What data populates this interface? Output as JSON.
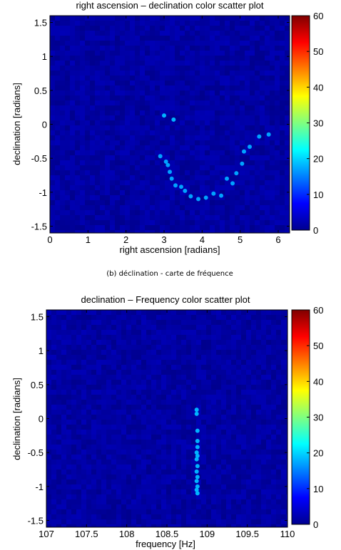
{
  "caption": "(b) déclination - carte de fréquence",
  "colorbar": {
    "min": 0,
    "max": 60,
    "ticks": [
      "0",
      "10",
      "20",
      "30",
      "40",
      "50",
      "60"
    ]
  },
  "chart_data": [
    {
      "type": "scatter",
      "title": "right ascension – declination color scatter plot",
      "xlabel": "right ascension [radians]",
      "ylabel": "declination [radians]",
      "xlim": [
        0,
        6.3
      ],
      "ylim": [
        -1.6,
        1.6
      ],
      "xticks": [
        "0",
        "1",
        "2",
        "3",
        "4",
        "5",
        "6"
      ],
      "yticks": [
        "1.5",
        "1",
        "0.5",
        "0",
        "-0.5",
        "-1",
        "-1.5"
      ],
      "background_value": 2,
      "points": [
        {
          "x": 3.0,
          "y": 0.13,
          "v": 18
        },
        {
          "x": 3.25,
          "y": 0.07,
          "v": 18
        },
        {
          "x": 2.9,
          "y": -0.47,
          "v": 17
        },
        {
          "x": 3.05,
          "y": -0.55,
          "v": 17
        },
        {
          "x": 3.1,
          "y": -0.6,
          "v": 17
        },
        {
          "x": 3.15,
          "y": -0.7,
          "v": 17
        },
        {
          "x": 3.2,
          "y": -0.8,
          "v": 17
        },
        {
          "x": 3.3,
          "y": -0.9,
          "v": 17
        },
        {
          "x": 3.45,
          "y": -0.92,
          "v": 17
        },
        {
          "x": 3.55,
          "y": -0.98,
          "v": 17
        },
        {
          "x": 3.7,
          "y": -1.06,
          "v": 17
        },
        {
          "x": 3.9,
          "y": -1.1,
          "v": 17
        },
        {
          "x": 4.1,
          "y": -1.08,
          "v": 17
        },
        {
          "x": 4.3,
          "y": -1.02,
          "v": 17
        },
        {
          "x": 4.5,
          "y": -1.05,
          "v": 17
        },
        {
          "x": 4.65,
          "y": -0.8,
          "v": 17
        },
        {
          "x": 4.8,
          "y": -0.87,
          "v": 17
        },
        {
          "x": 4.9,
          "y": -0.72,
          "v": 17
        },
        {
          "x": 5.05,
          "y": -0.58,
          "v": 17
        },
        {
          "x": 5.1,
          "y": -0.4,
          "v": 17
        },
        {
          "x": 5.25,
          "y": -0.33,
          "v": 17
        },
        {
          "x": 5.5,
          "y": -0.18,
          "v": 17
        },
        {
          "x": 5.75,
          "y": -0.15,
          "v": 17
        }
      ]
    },
    {
      "type": "scatter",
      "title": "declination – Frequency color scatter plot",
      "xlabel": "frequency [Hz]",
      "ylabel": "declination [radians]",
      "xlim": [
        107,
        110
      ],
      "ylim": [
        -1.6,
        1.6
      ],
      "xticks": [
        "107",
        "107.5",
        "108",
        "108.5",
        "109",
        "109.5",
        "110"
      ],
      "yticks": [
        "1.5",
        "1",
        "0.5",
        "0",
        "-0.5",
        "-1",
        "-1.5"
      ],
      "background_value": 2,
      "points": [
        {
          "x": 108.87,
          "y": 0.13,
          "v": 18
        },
        {
          "x": 108.87,
          "y": 0.07,
          "v": 18
        },
        {
          "x": 108.88,
          "y": -0.18,
          "v": 18
        },
        {
          "x": 108.88,
          "y": -0.33,
          "v": 18
        },
        {
          "x": 108.88,
          "y": -0.42,
          "v": 18
        },
        {
          "x": 108.87,
          "y": -0.5,
          "v": 18
        },
        {
          "x": 108.88,
          "y": -0.55,
          "v": 18
        },
        {
          "x": 108.87,
          "y": -0.6,
          "v": 18
        },
        {
          "x": 108.88,
          "y": -0.7,
          "v": 18
        },
        {
          "x": 108.87,
          "y": -0.78,
          "v": 18
        },
        {
          "x": 108.88,
          "y": -0.86,
          "v": 18
        },
        {
          "x": 108.87,
          "y": -0.92,
          "v": 18
        },
        {
          "x": 108.88,
          "y": -1.0,
          "v": 18
        },
        {
          "x": 108.87,
          "y": -1.05,
          "v": 18
        },
        {
          "x": 108.88,
          "y": -1.1,
          "v": 18
        }
      ]
    }
  ]
}
